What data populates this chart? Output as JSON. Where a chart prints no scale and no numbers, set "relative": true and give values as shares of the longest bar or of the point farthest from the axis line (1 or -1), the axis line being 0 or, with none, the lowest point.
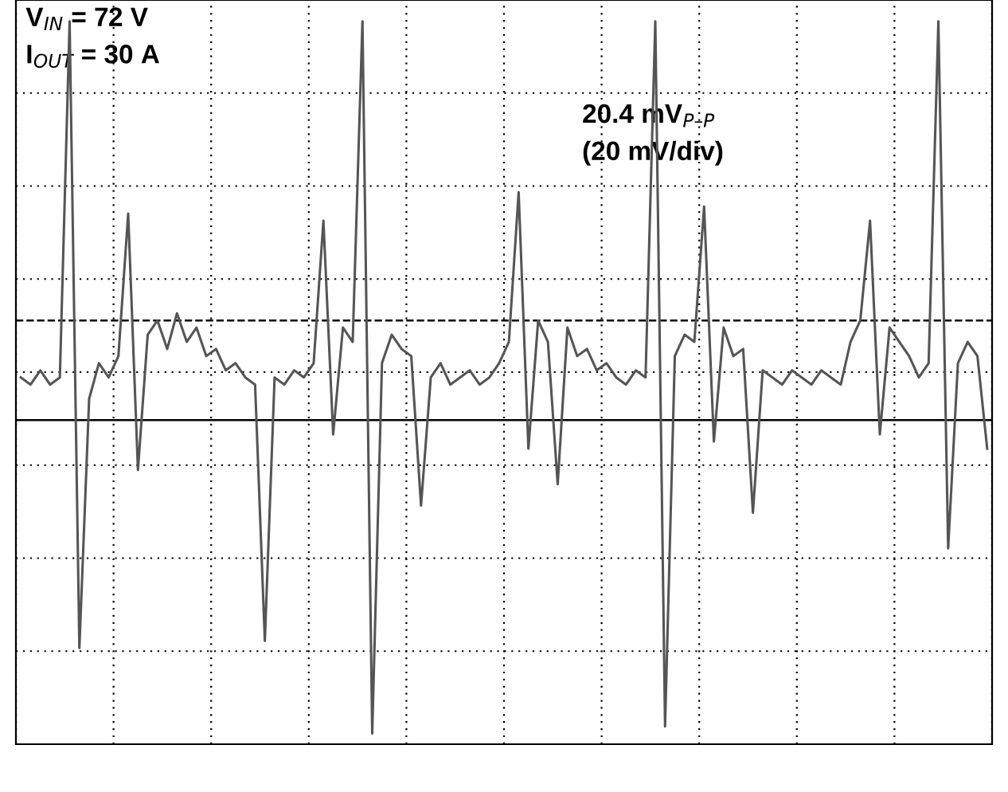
{
  "chart_data": {
    "type": "line",
    "relative": true,
    "categories": [
      null,
      null,
      null,
      null,
      null,
      null,
      null,
      null,
      null,
      null,
      null,
      null,
      null,
      null,
      null,
      null,
      null,
      null,
      null,
      null,
      null,
      null,
      null,
      null,
      null,
      null,
      null,
      null,
      null,
      null,
      null,
      null,
      null,
      null,
      null,
      null,
      null,
      null,
      null,
      null,
      null,
      null,
      null,
      null,
      null,
      null,
      null,
      null,
      null,
      null,
      null,
      null,
      null,
      null,
      null,
      null,
      null,
      null,
      null,
      null,
      null,
      null,
      null,
      null,
      null,
      null,
      null,
      null,
      null,
      null,
      null,
      null,
      null,
      null,
      null,
      null,
      null,
      null,
      null,
      null,
      null,
      null,
      null,
      null,
      null,
      null,
      null,
      null,
      null,
      null,
      null,
      null,
      null,
      null,
      null,
      null,
      null,
      null,
      null,
      null
    ],
    "series": [
      {
        "color": "#555555",
        "values": [
          0.5,
          0.49,
          0.51,
          0.49,
          0.5,
          1.0,
          0.12,
          0.47,
          0.52,
          0.5,
          0.53,
          0.73,
          0.37,
          0.56,
          0.58,
          0.54,
          0.59,
          0.55,
          0.57,
          0.53,
          0.54,
          0.51,
          0.52,
          0.5,
          0.49,
          0.13,
          0.5,
          0.49,
          0.51,
          0.5,
          0.52,
          0.72,
          0.42,
          0.57,
          0.55,
          1.0,
          0.0,
          0.52,
          0.56,
          0.54,
          0.53,
          0.32,
          0.5,
          0.52,
          0.49,
          0.5,
          0.51,
          0.49,
          0.5,
          0.52,
          0.55,
          0.76,
          0.4,
          0.58,
          0.55,
          0.35,
          0.57,
          0.53,
          0.54,
          0.51,
          0.52,
          0.5,
          0.49,
          0.51,
          0.5,
          1.0,
          0.01,
          0.53,
          0.56,
          0.55,
          0.74,
          0.41,
          0.57,
          0.53,
          0.54,
          0.31,
          0.51,
          0.5,
          0.49,
          0.51,
          0.5,
          0.49,
          0.51,
          0.5,
          0.49,
          0.55,
          0.58,
          0.72,
          0.42,
          0.57,
          0.55,
          0.53,
          0.5,
          0.52,
          1.0,
          0.26,
          0.52,
          0.55,
          0.53,
          0.4
        ]
      }
    ],
    "ref_lines": [
      {
        "axis": "y",
        "value": 0.58,
        "line_style": "dashed",
        "color": "#000000"
      },
      {
        "axis": "y",
        "value": 0.44,
        "line_style": "solid",
        "color": "#000000"
      }
    ],
    "annotations": [
      "V$_{IN}$ = 72 V",
      "I$_{OUT}$ = 30 A",
      "20.4 mV$_{P–P}$",
      "(20 mV/div)"
    ],
    "grid": true,
    "line_style": "solid",
    "marker": "none",
    "legend": false
  }
}
